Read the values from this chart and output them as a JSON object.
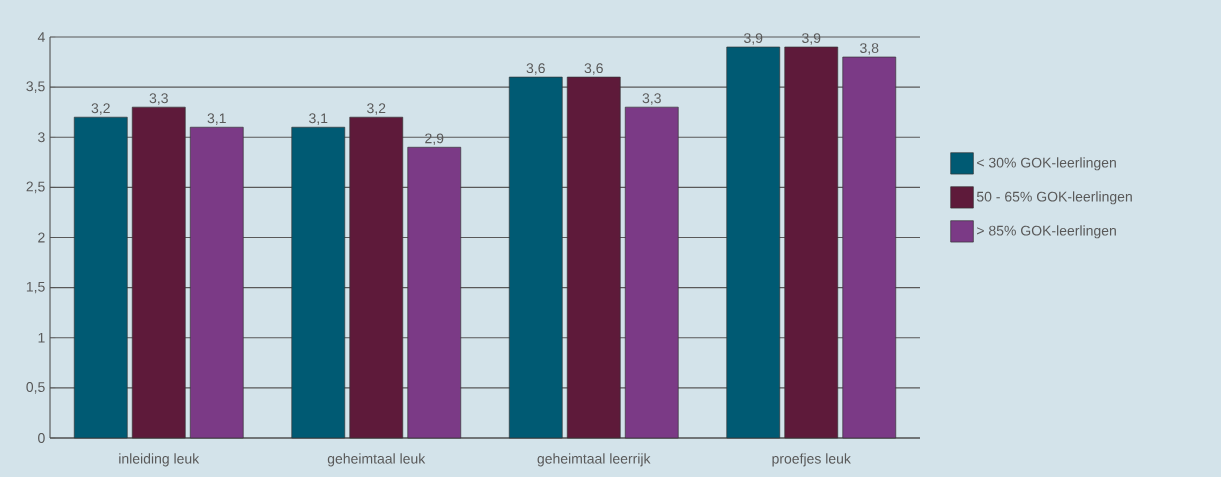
{
  "chart_data": {
    "type": "bar",
    "categories": [
      "inleiding leuk",
      "geheimtaal leuk",
      "geheimtaal leerrijk",
      "proefjes leuk"
    ],
    "series": [
      {
        "name": "< 30% GOK-leerlingen",
        "color": "#005a73",
        "values": [
          3.2,
          3.1,
          3.6,
          3.9
        ],
        "value_labels": [
          "3,2",
          "3,1",
          "3,6",
          "3,9"
        ]
      },
      {
        "name": "50 - 65% GOK-leerlingen",
        "color": "#5e1a3a",
        "values": [
          3.3,
          3.2,
          3.6,
          3.9
        ],
        "value_labels": [
          "3,3",
          "3,2",
          "3,6",
          "3,9"
        ]
      },
      {
        "name": "> 85% GOK-leerlingen",
        "color": "#7b3a86",
        "values": [
          3.1,
          2.9,
          3.3,
          3.8
        ],
        "value_labels": [
          "3,1",
          "2,9",
          "3,3",
          "3,8"
        ]
      }
    ],
    "ylim": [
      0,
      4
    ],
    "yticks": [
      0,
      {
        "value": 0.5,
        "label": "0,5"
      },
      1,
      {
        "value": 1.5,
        "label": "1,5"
      },
      2,
      {
        "value": 2.5,
        "label": "2,5"
      },
      3,
      {
        "value": 3.5,
        "label": "3,5"
      },
      4
    ],
    "grid": "y",
    "legend": "right"
  }
}
